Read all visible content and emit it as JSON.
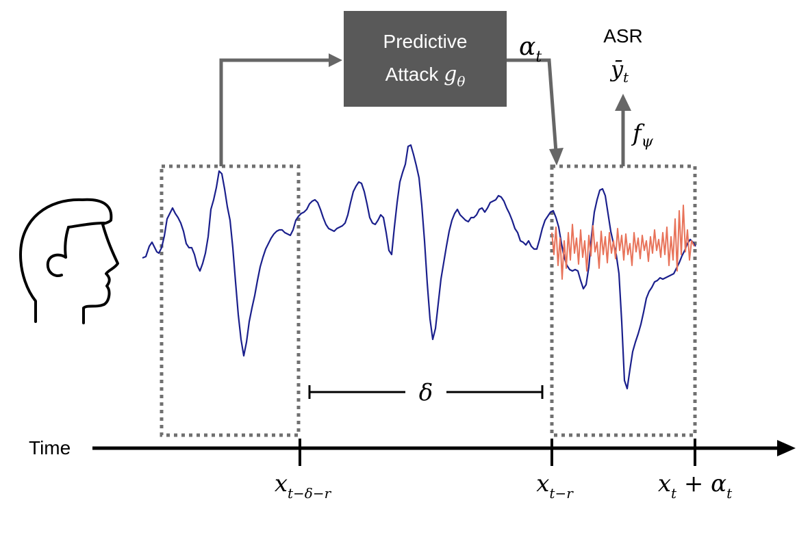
{
  "module": {
    "line1": "Predictive",
    "line2_text": "Attack ",
    "line2_symbol": "g",
    "line2_sub": "θ",
    "output_symbol": "α",
    "output_sub": "t"
  },
  "asr": {
    "label": "ASR",
    "output_symbol": "ȳ",
    "output_sub": "t",
    "function_symbol": "f",
    "function_sub": "ψ"
  },
  "gap": {
    "symbol": "δ"
  },
  "time_axis": {
    "label": "Time",
    "ticks": [
      {
        "main": "x",
        "sub": "t−δ−r",
        "suffix": "",
        "suffix_main": "",
        "suffix_sub": ""
      },
      {
        "main": "x",
        "sub": "t−r",
        "suffix": "",
        "suffix_main": "",
        "suffix_sub": ""
      },
      {
        "main": "x",
        "sub": "t",
        "suffix": " + ",
        "suffix_main": "α",
        "suffix_sub": "t"
      }
    ]
  },
  "colors": {
    "signal": "#1a1f8c",
    "perturbation": "#e8735a",
    "module_fill": "#595959",
    "arrow": "#666666",
    "window_border": "#707070",
    "axis": "#000000"
  },
  "icons": {
    "speaker": "human-head-profile-icon"
  }
}
